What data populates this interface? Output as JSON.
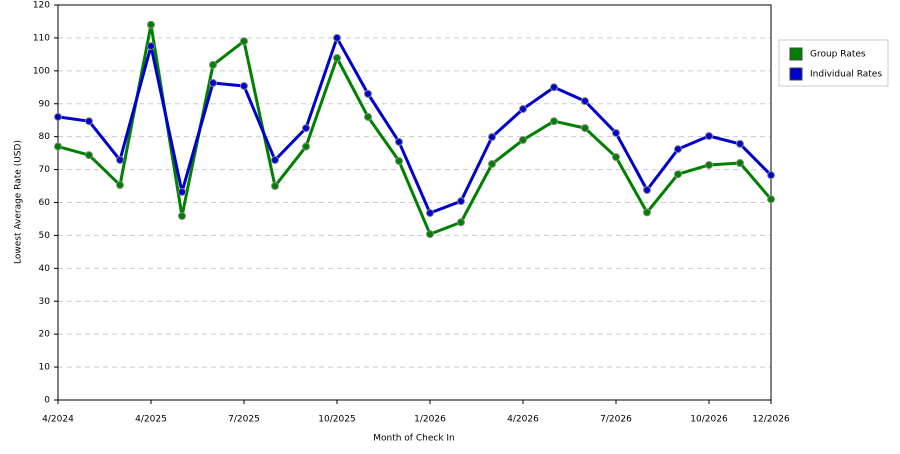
{
  "chart_data": {
    "type": "line",
    "x_label": "Month of Check In",
    "y_label": "Lowest Average Rate (USD)",
    "categories": [
      "4/2024",
      null,
      null,
      "4/2025",
      null,
      null,
      "7/2025",
      null,
      null,
      "10/2025",
      null,
      null,
      "1/2026",
      null,
      null,
      "4/2026",
      null,
      null,
      "7/2026",
      null,
      null,
      "10/2026",
      null,
      "12/2026"
    ],
    "series": [
      {
        "name": "Group Rates",
        "color": "#008000",
        "values": [
          77,
          74.4,
          65.3,
          114,
          55.9,
          101.8,
          109,
          65,
          77,
          103.9,
          86,
          72.6,
          50.4,
          54,
          71.7,
          79,
          84.7,
          82.6,
          73.8,
          57,
          68.6,
          71.4,
          72,
          61
        ]
      },
      {
        "name": "Individual Rates",
        "color": "#0000cc",
        "values": [
          86,
          84.7,
          72.9,
          107.5,
          63.2,
          96.3,
          95.4,
          72.9,
          82.6,
          110,
          93,
          78.4,
          56.8,
          60.4,
          79.9,
          88.4,
          95,
          90.8,
          81.1,
          63.8,
          76.2,
          80.2,
          77.8,
          68.3
        ]
      }
    ],
    "ylim": [
      0,
      120
    ],
    "yticks": [
      0,
      10,
      20,
      30,
      40,
      50,
      60,
      70,
      80,
      90,
      100,
      110,
      120
    ],
    "grid": true,
    "legend": "right"
  }
}
